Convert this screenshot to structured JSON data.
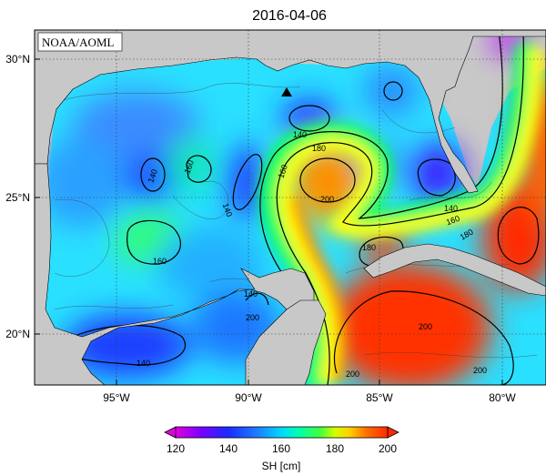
{
  "title": "2016-04-06",
  "credit": "NOAA/AOML",
  "axes": {
    "lat_ticks": [
      "30°N",
      "25°N",
      "20°N"
    ],
    "lon_ticks": [
      "95°W",
      "90°W",
      "85°W",
      "80°W"
    ],
    "lon_range": [
      -98,
      -78
    ],
    "lat_range": [
      18,
      31
    ]
  },
  "colorbar": {
    "label": "SH [cm]",
    "ticks": [
      "120",
      "140",
      "160",
      "180",
      "200"
    ],
    "range": [
      120,
      200
    ],
    "colors": [
      "#e000e0",
      "#7a00ff",
      "#1a2cff",
      "#1e7aff",
      "#00c8ff",
      "#00ffd0",
      "#00ff60",
      "#a8ff00",
      "#ffff00",
      "#ffc000",
      "#ff7000",
      "#ff2a00"
    ]
  },
  "contour_labels": [
    "140",
    "160",
    "140",
    "140",
    "160",
    "180",
    "200",
    "160",
    "180",
    "140",
    "160",
    "180",
    "200",
    "200",
    "140",
    "200",
    "200",
    "140"
  ],
  "marker": {
    "type": "triangle",
    "lon": -88.5,
    "lat": 28.7
  },
  "land_color": "#c8c8c8"
}
